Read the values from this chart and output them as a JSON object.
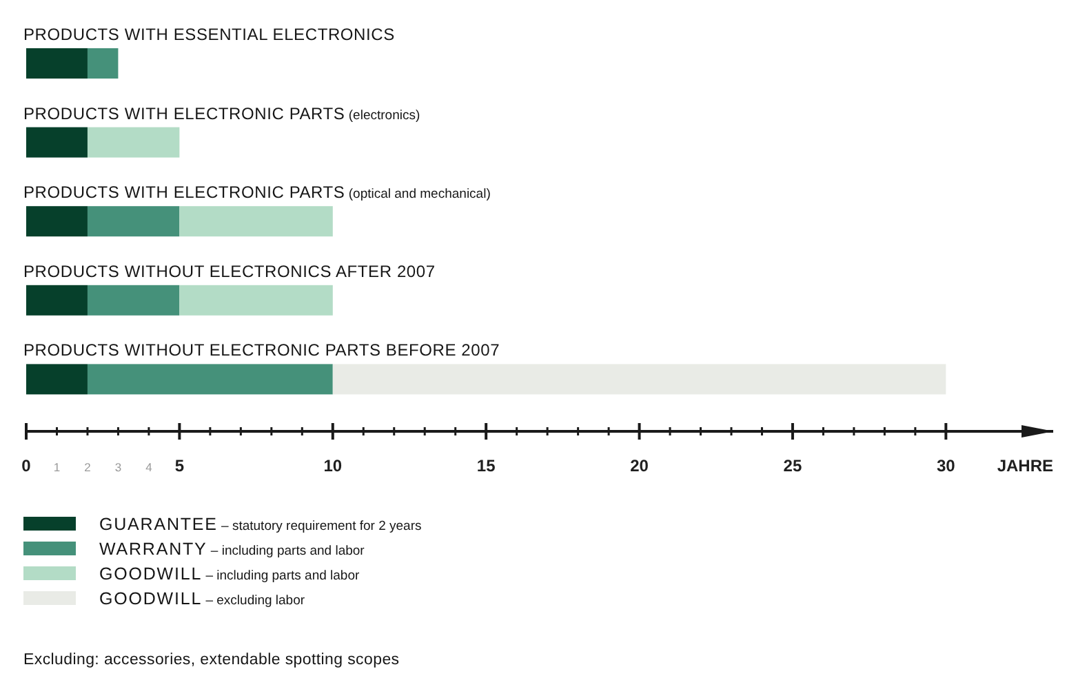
{
  "chart_data": {
    "type": "bar",
    "orientation": "horizontal",
    "stacked": true,
    "categories": [
      "PRODUCTS WITH ESSENTIAL ELECTRONICS",
      "PRODUCTS WITH ELECTRONIC PARTS (electronics)",
      "PRODUCTS WITH ELECTRONIC PARTS (optical and mechanical)",
      "PRODUCTS WITHOUT ELECTRONICS AFTER 2007",
      "PRODUCTS WITHOUT ELECTRONIC PARTS BEFORE 2007"
    ],
    "series": [
      {
        "name": "GUARANTEE – statutory requirement for 2 years",
        "color": "#06402b",
        "values": [
          2,
          2,
          2,
          2,
          2
        ]
      },
      {
        "name": "WARRANTY – including parts and labor",
        "color": "#45917a",
        "values": [
          1,
          null,
          3,
          3,
          8
        ]
      },
      {
        "name": "GOODWILL – including parts and labor",
        "color": "#b3dcc6",
        "values": [
          null,
          3,
          5,
          5,
          null
        ]
      },
      {
        "name": "GOODWILL – excluding labor",
        "color": "#e9ebe6",
        "values": [
          null,
          null,
          null,
          null,
          20
        ]
      }
    ],
    "xlabel": "JAHRE",
    "xlim": [
      0,
      33.5
    ],
    "xticks": [
      0,
      1,
      2,
      3,
      4,
      5,
      {
        "value": 6,
        "label": null
      },
      {
        "value": 7,
        "label": null
      },
      {
        "value": 8,
        "label": null
      },
      {
        "value": 9,
        "label": null
      },
      10,
      {
        "value": 11,
        "label": null
      },
      {
        "value": 12,
        "label": null
      },
      {
        "value": 13,
        "label": null
      },
      {
        "value": 14,
        "label": null
      },
      15,
      {
        "value": 16,
        "label": null
      },
      {
        "value": 17,
        "label": null
      },
      {
        "value": 18,
        "label": null
      },
      {
        "value": 19,
        "label": null
      },
      20,
      {
        "value": 21,
        "label": null
      },
      {
        "value": 22,
        "label": null
      },
      {
        "value": 23,
        "label": null
      },
      {
        "value": 24,
        "label": null
      },
      25,
      {
        "value": 26,
        "label": null
      },
      {
        "value": 27,
        "label": null
      },
      {
        "value": 28,
        "label": null
      },
      {
        "value": 29,
        "label": null
      },
      30
    ],
    "legend": "bottom left",
    "annotations": [
      "Excluding: accessories, extendable spotting scopes"
    ]
  }
}
